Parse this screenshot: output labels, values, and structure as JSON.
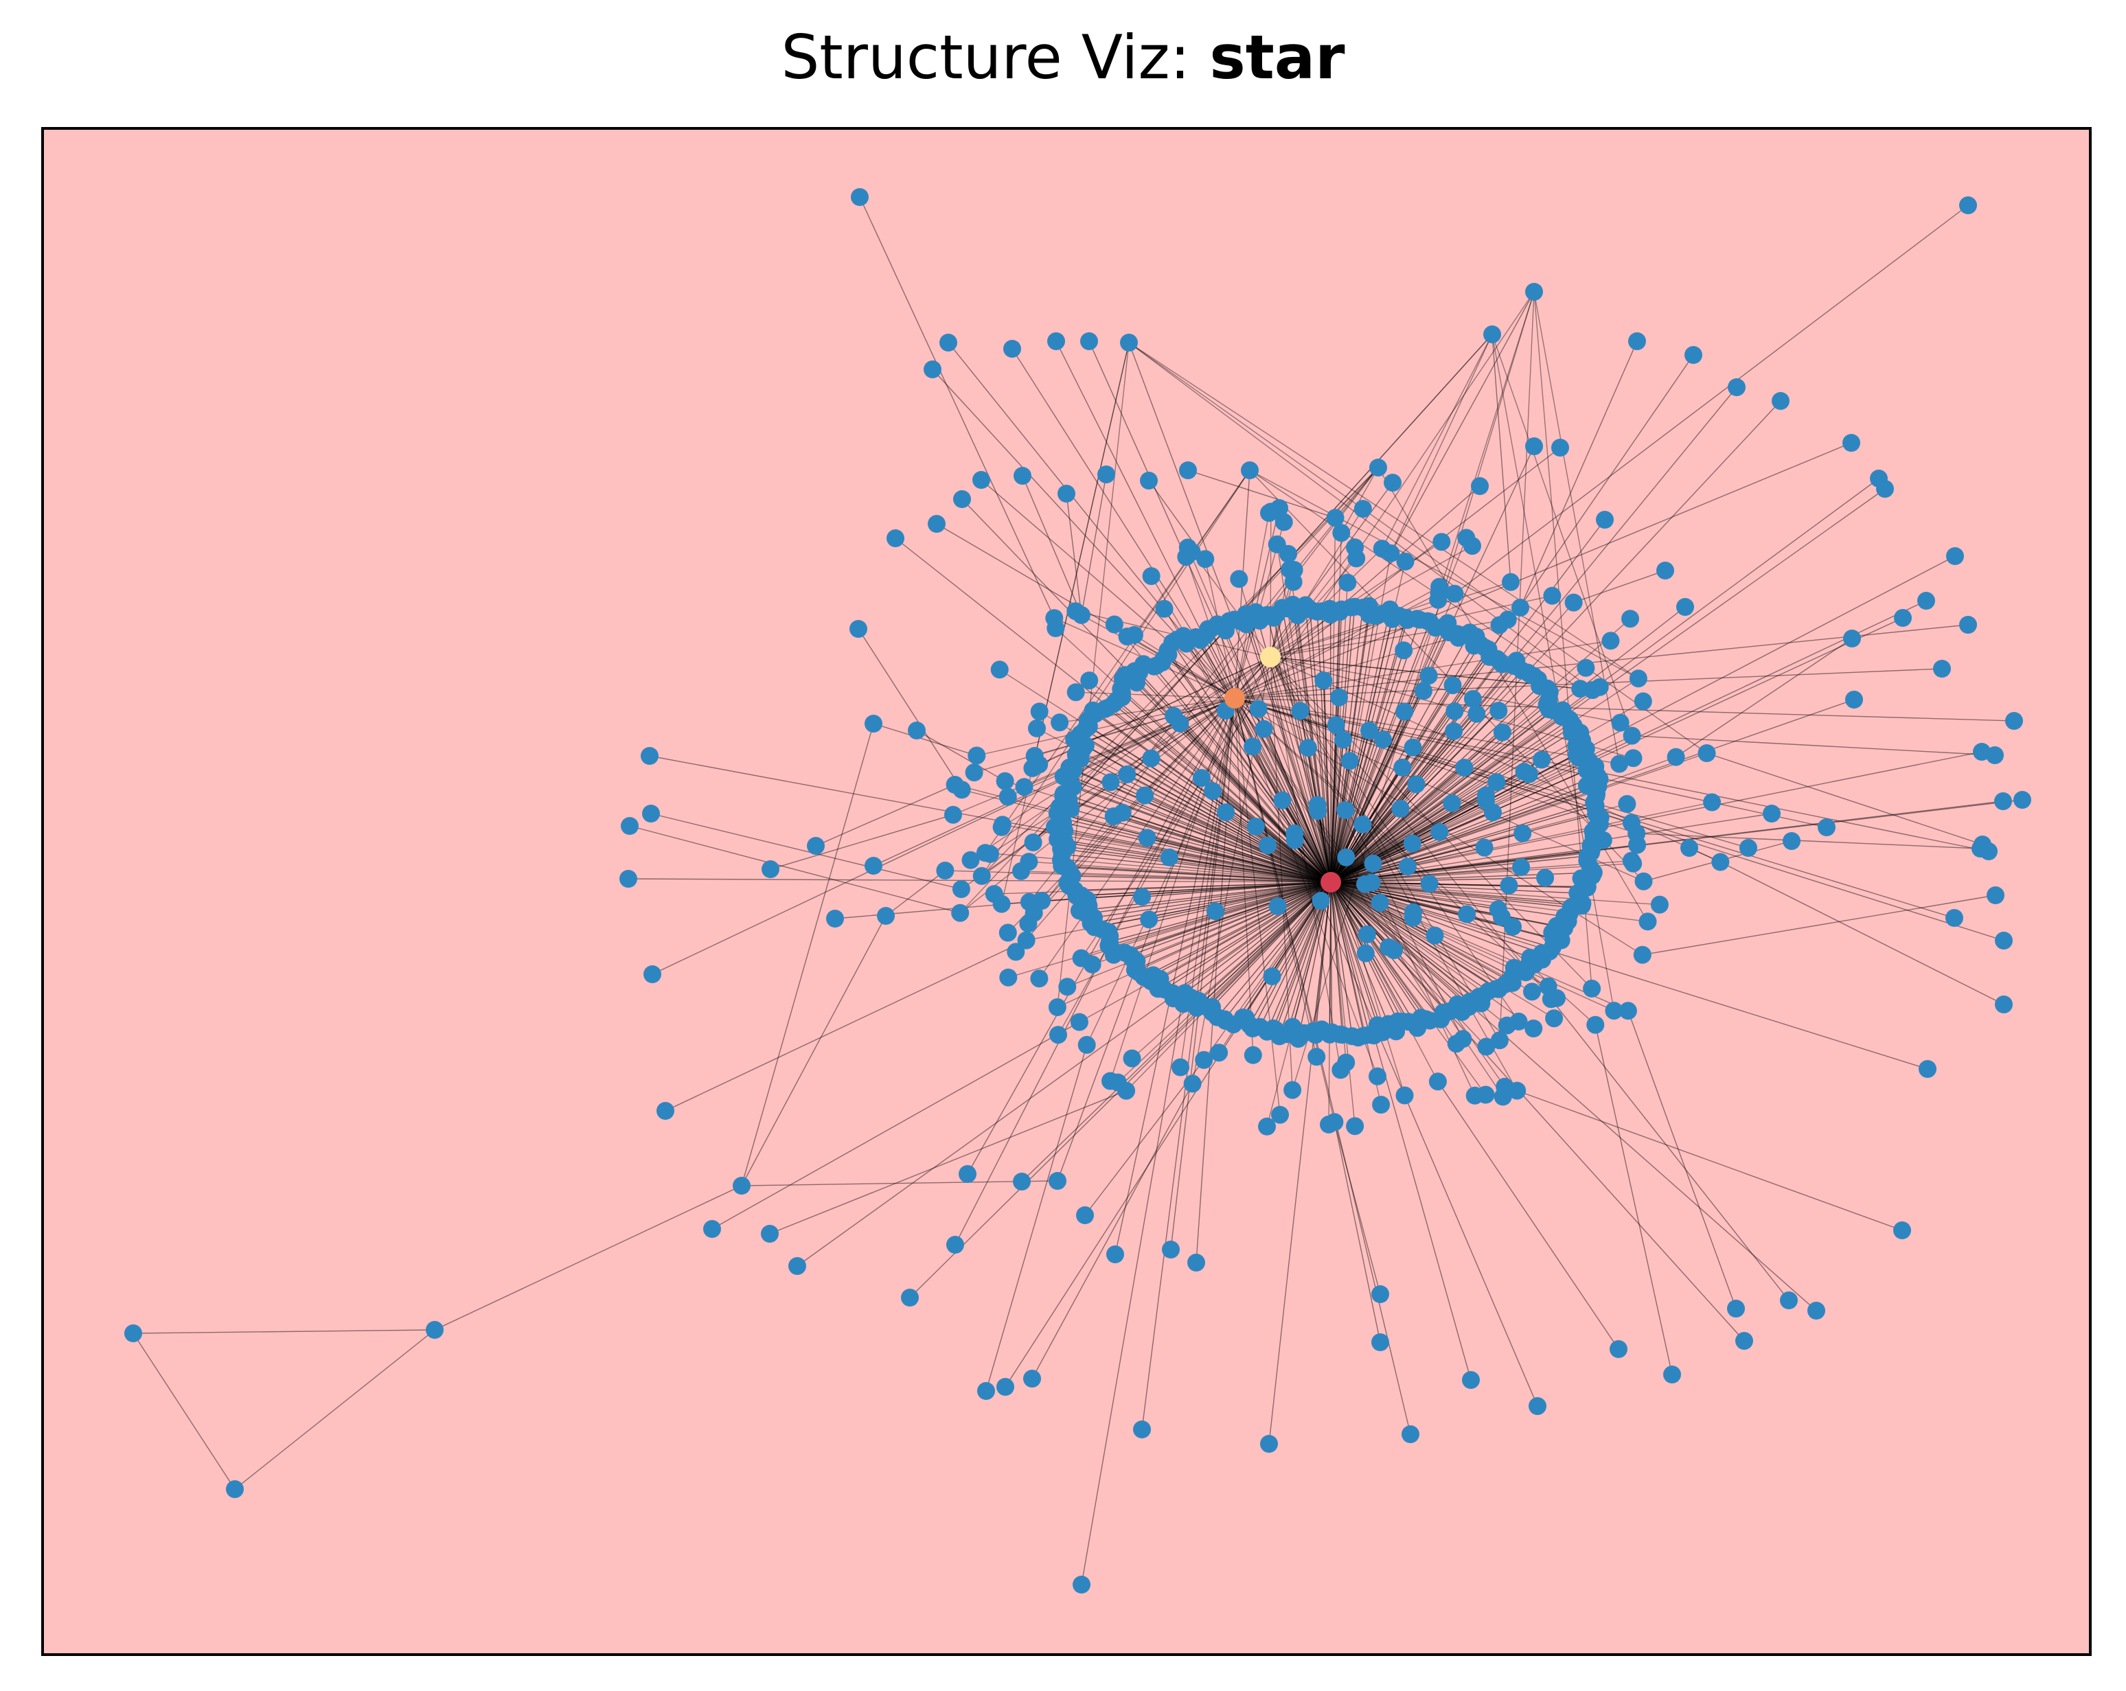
{
  "title": {
    "prefix": "Structure Viz: ",
    "name": "star"
  },
  "colors": {
    "background": "#ffc0c0",
    "node": "#2e86c1",
    "hub": "#d63c4f",
    "secondary_hub": "#f28b56",
    "tertiary_hub": "#ffe49a",
    "edge": "#000000",
    "frame": "#000000"
  },
  "graph": {
    "layout": "force-directed",
    "structure": "star",
    "highlighted_nodes": [
      {
        "role": "hub",
        "color": "#d63c4f"
      },
      {
        "role": "secondary-hub",
        "color": "#f28b56"
      },
      {
        "role": "tertiary-hub",
        "color": "#ffe49a"
      }
    ],
    "detached_chain": "three-node loop at lower-left connected to main cluster"
  }
}
